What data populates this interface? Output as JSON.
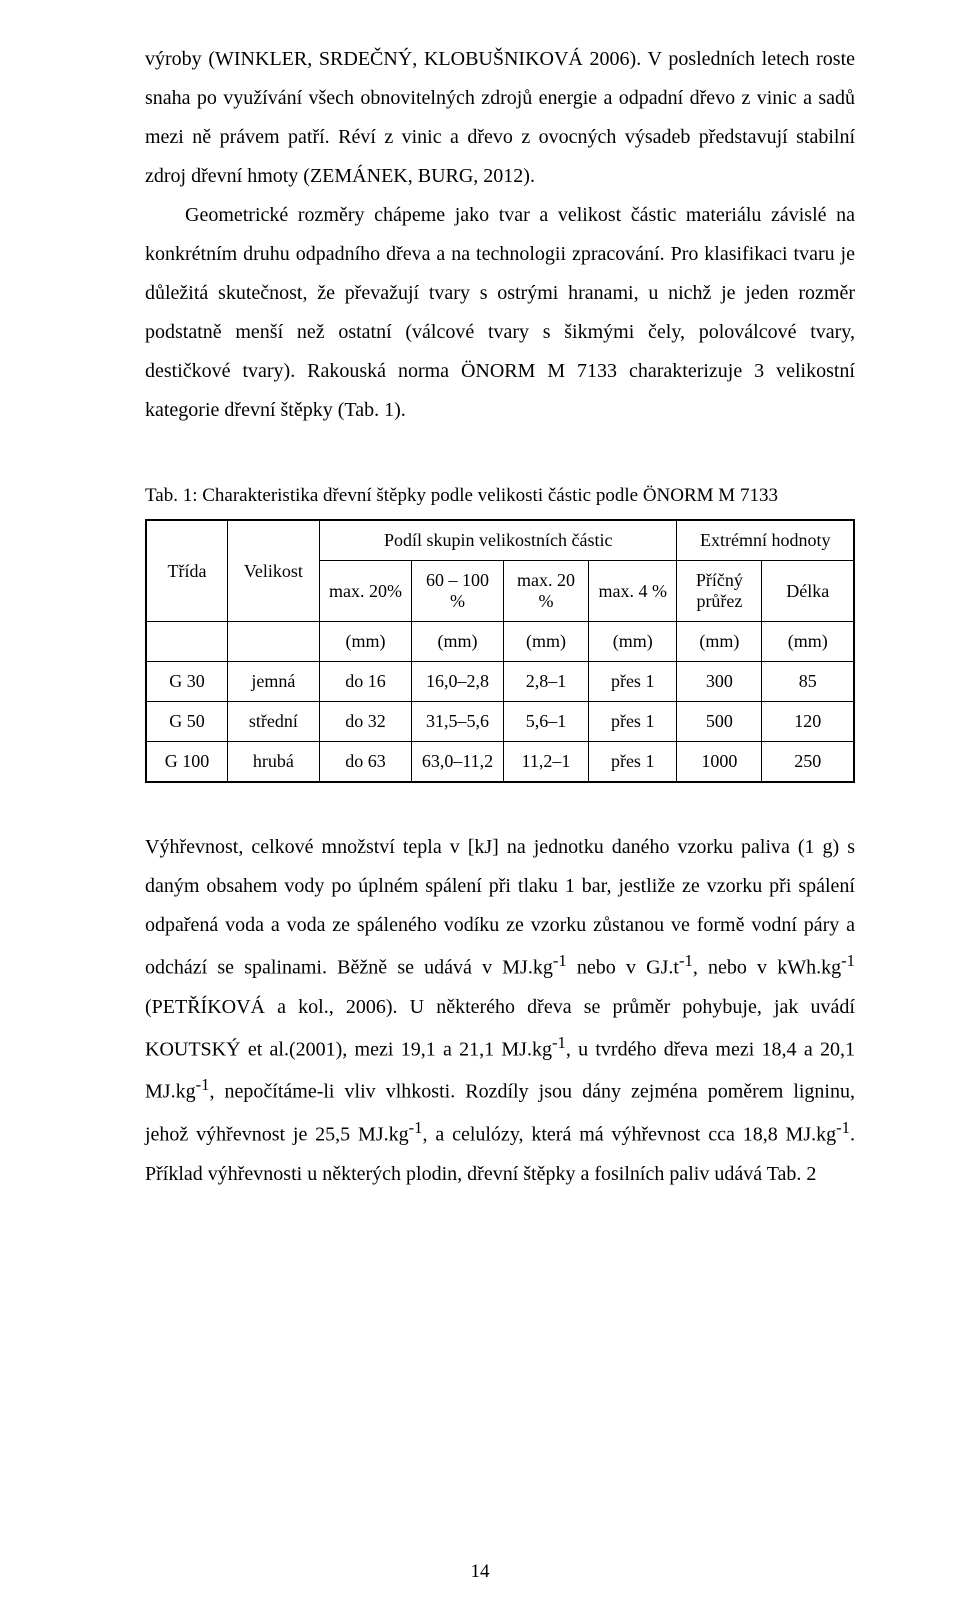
{
  "para1": "výroby (WINKLER, SRDEČNÝ, KLOBUŠNIKOVÁ 2006). V posledních letech roste snaha po využívání všech obnovitelných zdrojů energie a odpadní dřevo z vinic a sadů mezi ně právem patří. Réví z vinic a dřevo z ovocných výsadeb představují stabilní zdroj dřevní hmoty (ZEMÁNEK, BURG, 2012).",
  "para2": "Geometrické rozměry chápeme jako tvar a velikost částic materiálu závislé na konkrétním druhu odpadního dřeva a na technologii zpracování. Pro klasifikaci tvaru je důležitá skutečnost, že převažují tvary s ostrými hranami, u nichž je jeden rozměr podstatně menší než ostatní (válcové tvary s šikmými čely, poloválcové tvary, destičkové tvary). Rakouská norma ÖNORM M 7133 charakterizuje 3 velikostní kategorie dřevní štěpky (Tab. 1).",
  "tableCaption": "Tab. 1: Charakteristika dřevní štěpky podle velikosti částic podle ÖNORM M 7133",
  "table": {
    "headerGroup1": "Podíl skupin velikostních částic",
    "headerGroup2": "Extrémní hodnoty",
    "colTrida": "Třída",
    "colVelikost": "Velikost",
    "colMax20": "max. 20%",
    "col60100": "60 – 100 %",
    "colMax20b": "max. 20 %",
    "colMax4": "max. 4 %",
    "colPrurez": "Příčný průřez",
    "colDelka": "Délka",
    "unitRow": "(mm)",
    "rows": [
      {
        "trida": "G 30",
        "velikost": "jemná",
        "c1": "do 16",
        "c2": "16,0–2,8",
        "c3": "2,8–1",
        "c4": "přes 1",
        "c5": "300",
        "c6": "85"
      },
      {
        "trida": "G 50",
        "velikost": "střední",
        "c1": "do 32",
        "c2": "31,5–5,6",
        "c3": "5,6–1",
        "c4": "přes 1",
        "c5": "500",
        "c6": "120"
      },
      {
        "trida": "G 100",
        "velikost": "hrubá",
        "c1": "do 63",
        "c2": "63,0–11,2",
        "c3": "11,2–1",
        "c4": "přes 1",
        "c5": "1000",
        "c6": "250"
      }
    ]
  },
  "para3_html": "Výhřevnost, celkové množství tepla v [kJ] na jednotku daného vzorku paliva (1 g) s daným obsahem vody po úplném spálení při tlaku 1 bar, jestliže ze vzorku při spálení odpařená voda a voda ze spáleného vodíku ze vzorku zůstanou ve formě vodní páry a odchází se spalinami. Běžně se udává v MJ.kg<sup>-1</sup> nebo v GJ.t<sup>-1</sup>, nebo v kWh.kg<sup>-1</sup> (PETŘÍKOVÁ a kol., 2006). U některého dřeva se průměr pohybuje, jak uvádí KOUTSKÝ et al.(2001), mezi 19,1 a 21,1 MJ.kg<sup>-1</sup>, u tvrdého dřeva mezi 18,4 a 20,1 MJ.kg<sup>-1</sup>, nepočítáme-li vliv vlhkosti. Rozdíly jsou dány zejména poměrem ligninu, jehož výhřevnost je 25,5 MJ.kg<sup>-1</sup>, a celulózy, která má výhřevnost cca 18,8 MJ.kg<sup>-1</sup>. Příklad výhřevnosti u některých plodin, dřevní štěpky a fosilních paliv udává Tab. 2",
  "pageNumber": "14"
}
